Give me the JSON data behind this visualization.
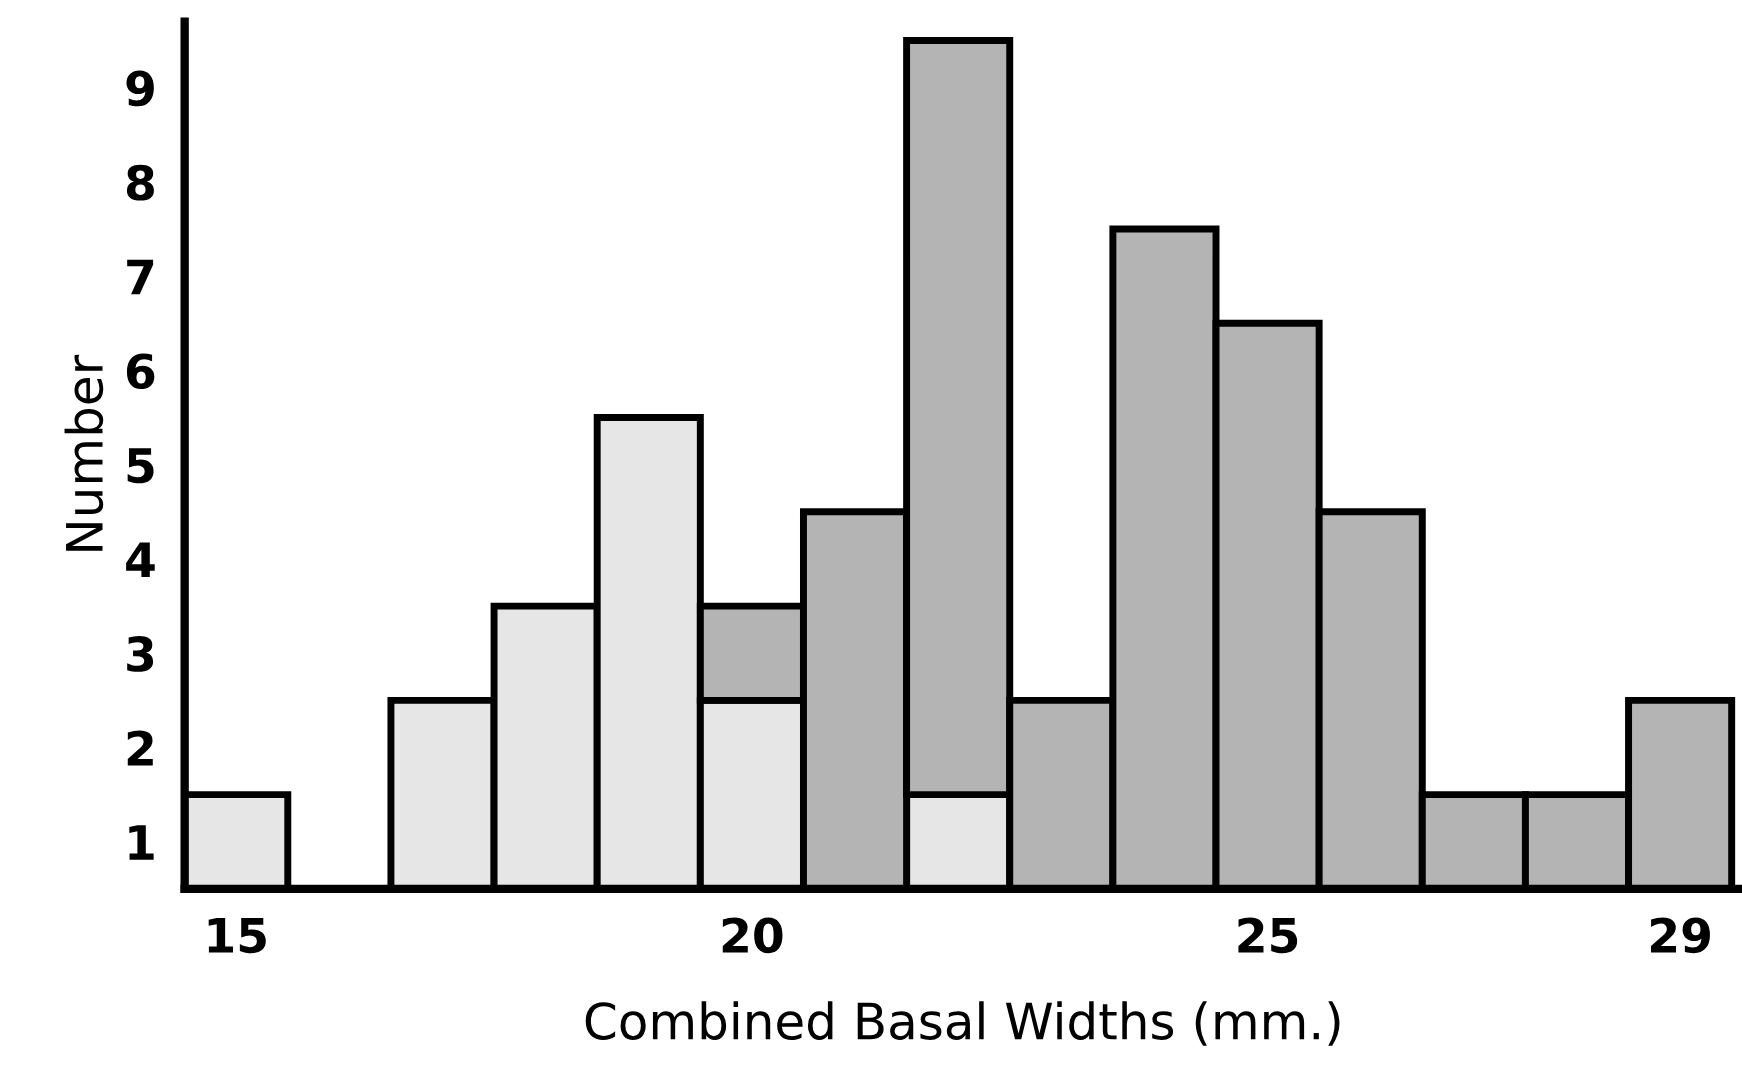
{
  "chart_data": {
    "type": "bar",
    "stacked": true,
    "xlabel": "Combined Basal Widths (mm.)",
    "ylabel": "Number",
    "x": [
      15,
      16,
      17,
      18,
      19,
      20,
      21,
      22,
      23,
      24,
      25,
      26,
      27,
      28,
      29
    ],
    "series": [
      {
        "color": "#e6e6e6",
        "values": [
          1,
          0,
          2,
          3,
          5,
          2,
          0,
          1,
          0,
          0,
          0,
          0,
          0,
          0,
          0
        ]
      },
      {
        "color": "#b4b4b4",
        "values": [
          0,
          0,
          0,
          0,
          0,
          1,
          4,
          8,
          2,
          7,
          6,
          4,
          1,
          1,
          2
        ]
      }
    ],
    "xlim": [
      14.5,
      29.6
    ],
    "xticks": [
      15,
      20,
      25,
      29
    ],
    "ylim": [
      0,
      9.2
    ],
    "yticks": [
      {
        "value": 0.5,
        "label": "1"
      },
      {
        "value": 1.5,
        "label": "2"
      },
      {
        "value": 2.5,
        "label": "3"
      },
      {
        "value": 3.5,
        "label": "4"
      },
      {
        "value": 4.5,
        "label": "5"
      },
      {
        "value": 5.5,
        "label": "6"
      },
      {
        "value": 6.5,
        "label": "7"
      },
      {
        "value": 7.5,
        "label": "8"
      },
      {
        "value": 8.5,
        "label": "9"
      }
    ],
    "grid": false,
    "legend": false
  }
}
